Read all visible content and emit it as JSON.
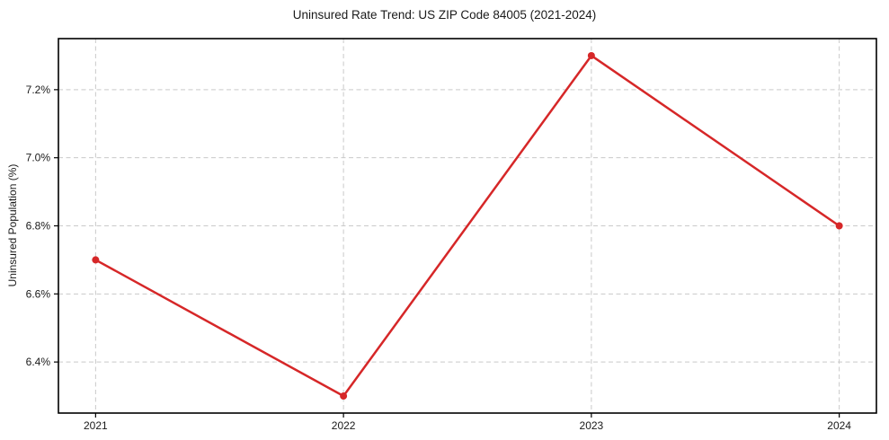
{
  "chart_data": {
    "type": "line",
    "title": "Uninsured Rate Trend: US ZIP Code 84005 (2021-2024)",
    "xlabel": "",
    "ylabel": "Uninsured Population (%)",
    "x": [
      2021,
      2022,
      2023,
      2024
    ],
    "values": [
      6.7,
      6.3,
      7.3,
      6.8
    ],
    "xlim": [
      2020.85,
      2024.15
    ],
    "ylim": [
      6.25,
      7.35
    ],
    "xtick_values": [
      2021,
      2022,
      2023,
      2024
    ],
    "xtick_labels": [
      "2021",
      "2022",
      "2023",
      "2024"
    ],
    "ytick_values": [
      6.4,
      6.6,
      6.8,
      7.0,
      7.2
    ],
    "ytick_labels": [
      "6.4%",
      "6.6%",
      "6.8%",
      "7.0%",
      "7.2%"
    ],
    "line_color": "#d62728",
    "marker": "circle",
    "marker_radius": 4,
    "line_width": 2.5,
    "grid": true,
    "grid_color": "#c9c9c9",
    "grid_style": "dashed",
    "frame_color": "#000000",
    "legend": false
  }
}
